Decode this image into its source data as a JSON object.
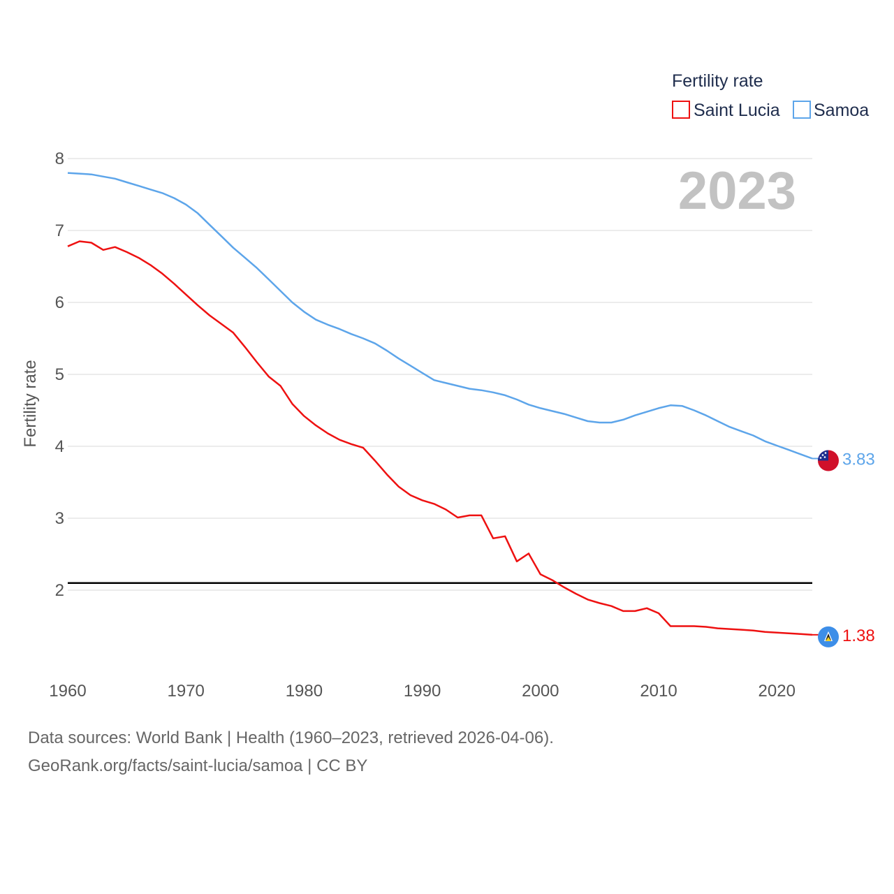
{
  "legend": {
    "title": "Fertility rate"
  },
  "current_year": "2023",
  "footer": {
    "source": "Data sources: World Bank | Health (1960–2023, retrieved 2026-04-06).",
    "credit": "GeoRank.org/facts/saint-lucia/samoa | CC BY"
  },
  "colors": {
    "saint_lucia": "#ee1111",
    "samoa": "#5da5ea",
    "reference_line": "#000000",
    "grid": "#e6e6e6"
  },
  "chart_data": {
    "type": "line",
    "title": "",
    "xlabel": "",
    "ylabel": "Fertility rate",
    "xlim": [
      1960,
      2023
    ],
    "ylim": [
      1,
      8
    ],
    "x_ticks": [
      "1960",
      "1970",
      "1980",
      "1990",
      "2000",
      "2010",
      "2020"
    ],
    "y_ticks": [
      "2",
      "3",
      "4",
      "5",
      "6",
      "7",
      "8"
    ],
    "reference_line": {
      "value": 2.1
    },
    "x": [
      1960,
      1961,
      1962,
      1963,
      1964,
      1965,
      1966,
      1967,
      1968,
      1969,
      1970,
      1971,
      1972,
      1973,
      1974,
      1975,
      1976,
      1977,
      1978,
      1979,
      1980,
      1981,
      1982,
      1983,
      1984,
      1985,
      1986,
      1987,
      1988,
      1989,
      1990,
      1991,
      1992,
      1993,
      1994,
      1995,
      1996,
      1997,
      1998,
      1999,
      2000,
      2001,
      2002,
      2003,
      2004,
      2005,
      2006,
      2007,
      2008,
      2009,
      2010,
      2011,
      2012,
      2013,
      2014,
      2015,
      2016,
      2017,
      2018,
      2019,
      2020,
      2021,
      2022,
      2023
    ],
    "series": [
      {
        "name": "Saint Lucia",
        "color": "#ee1111",
        "end_label": "1.38",
        "flag_icon": "saint-lucia-flag-icon",
        "values": [
          6.78,
          6.85,
          6.83,
          6.73,
          6.77,
          6.7,
          6.62,
          6.52,
          6.4,
          6.26,
          6.11,
          5.96,
          5.82,
          5.7,
          5.58,
          5.38,
          5.17,
          4.97,
          4.84,
          4.59,
          4.42,
          4.29,
          4.18,
          4.09,
          4.03,
          3.98,
          3.8,
          3.61,
          3.44,
          3.32,
          3.25,
          3.2,
          3.12,
          3.01,
          3.04,
          3.04,
          2.72,
          2.75,
          2.4,
          2.51,
          2.22,
          2.14,
          2.04,
          1.95,
          1.87,
          1.82,
          1.78,
          1.71,
          1.71,
          1.75,
          1.68,
          1.5,
          1.5,
          1.5,
          1.49,
          1.47,
          1.46,
          1.45,
          1.44,
          1.42,
          1.41,
          1.4,
          1.39,
          1.38
        ]
      },
      {
        "name": "Samoa",
        "color": "#5da5ea",
        "end_label": "3.83",
        "flag_icon": "samoa-flag-icon",
        "values": [
          7.8,
          7.79,
          7.78,
          7.75,
          7.72,
          7.67,
          7.62,
          7.57,
          7.52,
          7.45,
          7.36,
          7.24,
          7.08,
          6.92,
          6.76,
          6.62,
          6.48,
          6.32,
          6.16,
          6.0,
          5.87,
          5.76,
          5.69,
          5.63,
          5.56,
          5.5,
          5.43,
          5.33,
          5.22,
          5.12,
          5.02,
          4.92,
          4.88,
          4.84,
          4.8,
          4.78,
          4.75,
          4.71,
          4.65,
          4.58,
          4.53,
          4.49,
          4.45,
          4.4,
          4.35,
          4.33,
          4.33,
          4.37,
          4.43,
          4.48,
          4.53,
          4.57,
          4.56,
          4.5,
          4.43,
          4.35,
          4.27,
          4.21,
          4.15,
          4.07,
          4.01,
          3.95,
          3.89,
          3.83
        ]
      }
    ]
  }
}
